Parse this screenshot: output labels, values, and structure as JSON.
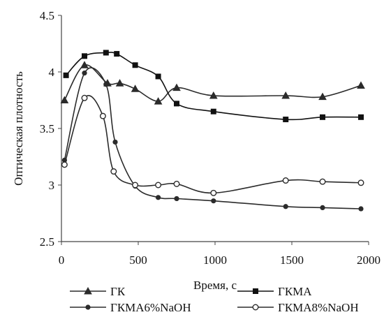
{
  "chart_data": {
    "type": "line",
    "title": "",
    "xlabel": "Время, с",
    "ylabel": "Оптическая плотность",
    "xlim": [
      0,
      2000
    ],
    "ylim": [
      2.5,
      4.5
    ],
    "x_ticks": [
      "0",
      "500",
      "1000",
      "1500",
      "2000"
    ],
    "y_ticks": [
      "2.5",
      "3",
      "3.5",
      "4",
      "4.5"
    ],
    "grid": false,
    "legend_position": "bottom",
    "series": [
      {
        "name": "ГК",
        "marker": "triangle",
        "color": "#2b2b2b",
        "points": [
          [
            20,
            3.75
          ],
          [
            150,
            4.06
          ],
          [
            300,
            3.9
          ],
          [
            380,
            3.9
          ],
          [
            480,
            3.85
          ],
          [
            630,
            3.74
          ],
          [
            750,
            3.86
          ],
          [
            990,
            3.79
          ],
          [
            1460,
            3.79
          ],
          [
            1700,
            3.78
          ],
          [
            1950,
            3.88
          ]
        ]
      },
      {
        "name": "ГКМА",
        "marker": "square",
        "color": "#111111",
        "points": [
          [
            30,
            3.97
          ],
          [
            150,
            4.14
          ],
          [
            290,
            4.17
          ],
          [
            360,
            4.16
          ],
          [
            480,
            4.06
          ],
          [
            630,
            3.96
          ],
          [
            750,
            3.72
          ],
          [
            990,
            3.65
          ],
          [
            1460,
            3.58
          ],
          [
            1700,
            3.6
          ],
          [
            1950,
            3.6
          ]
        ]
      },
      {
        "name": "ГКМА6%NaOH",
        "marker": "dot",
        "color": "#2b2b2b",
        "points": [
          [
            20,
            3.22
          ],
          [
            150,
            3.99
          ],
          [
            290,
            3.89
          ],
          [
            350,
            3.38
          ],
          [
            480,
            2.99
          ],
          [
            630,
            2.89
          ],
          [
            750,
            2.88
          ],
          [
            990,
            2.86
          ],
          [
            1460,
            2.81
          ],
          [
            1700,
            2.8
          ],
          [
            1950,
            2.79
          ]
        ]
      },
      {
        "name": "ГКМА8%NaOH",
        "marker": "circle",
        "color": "#2b2b2b",
        "points": [
          [
            20,
            3.18
          ],
          [
            150,
            3.77
          ],
          [
            270,
            3.61
          ],
          [
            340,
            3.12
          ],
          [
            480,
            3.0
          ],
          [
            630,
            3.0
          ],
          [
            750,
            3.01
          ],
          [
            990,
            2.93
          ],
          [
            1460,
            3.04
          ],
          [
            1700,
            3.03
          ],
          [
            1950,
            3.02
          ]
        ]
      }
    ]
  }
}
